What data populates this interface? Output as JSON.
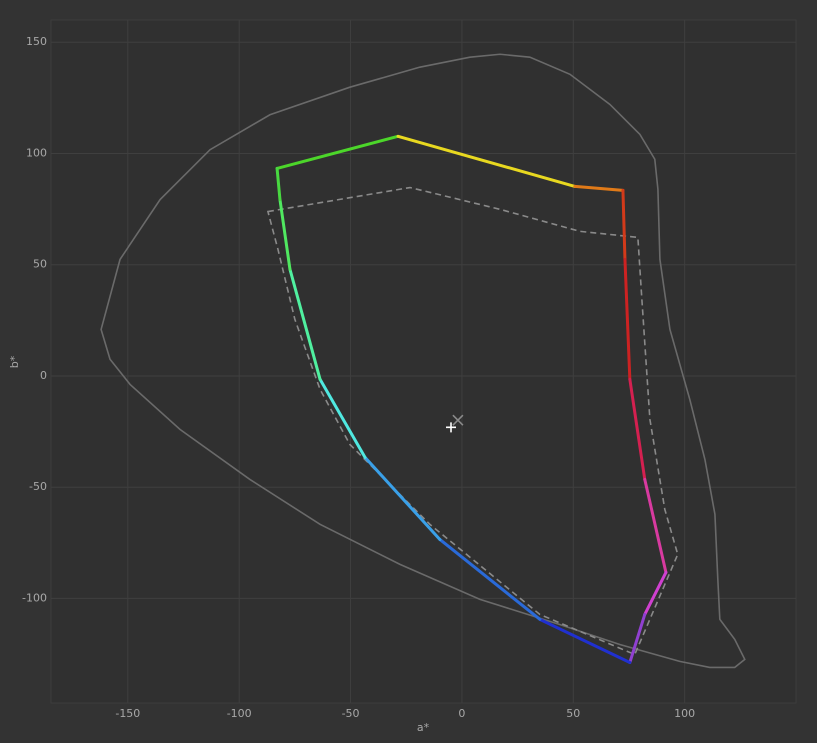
{
  "chart_data": {
    "type": "line",
    "x_label": "a*",
    "y_label": "b*",
    "xlim": [
      -184.5,
      150
    ],
    "ylim": [
      -147,
      160
    ],
    "xticks": [
      -150,
      -100,
      -50,
      0,
      50,
      100
    ],
    "yticks": [
      -100,
      -50,
      0,
      50,
      100,
      150
    ],
    "grid": true,
    "series": [
      {
        "color": "#6a6a6a",
        "dash": "solid",
        "closed": true,
        "x": [
          -162.0,
          -153.5,
          -135.5,
          -113.1,
          -86.2,
          -50.3,
          -18.9,
          3.6,
          17.1,
          30.5,
          48.5,
          66.4,
          79.9,
          86.6,
          88.0,
          88.9,
          93.4,
          102.3,
          109.1,
          113.6,
          114.9,
          115.8,
          122.5,
          127.0,
          122.5,
          111.3,
          97.8,
          70.9,
          43.9,
          8.1,
          -27.8,
          -63.7,
          -95.2,
          -126.6,
          -149.0,
          -158.0
        ],
        "y": [
          20.9,
          52.4,
          79.3,
          101.7,
          117.4,
          129.8,
          138.8,
          143.3,
          144.6,
          143.3,
          135.6,
          122.1,
          108.6,
          97.4,
          83.9,
          52.4,
          20.9,
          -10.5,
          -37.5,
          -62.2,
          -91.5,
          -109.4,
          -118.4,
          -127.4,
          -131.0,
          -131.0,
          -128.3,
          -120.7,
          -111.7,
          -100.4,
          -84.7,
          -66.7,
          -46.5,
          -24.0,
          -3.8,
          7.5
        ]
      },
      {
        "color": "#8a8a8a",
        "dash": "dashed",
        "closed": true,
        "x": [
          -87.1,
          -23.3,
          17.1,
          53.0,
          79.0,
          80.8,
          84.4,
          91.1,
          96.9,
          77.6,
          35.0,
          -14.4,
          -50.3,
          -63.7,
          -75.0,
          -82.6
        ],
        "y": [
          73.9,
          84.7,
          74.9,
          65.0,
          62.3,
          34.4,
          -19.5,
          -60.0,
          -80.2,
          -125.2,
          -107.2,
          -66.7,
          -30.8,
          -6.0,
          25.4,
          56.9
        ]
      },
      {
        "dash": "solid",
        "closed": true,
        "width": 3,
        "colors": [
          "#4cd62a",
          "#e8d820",
          "#e07a18",
          "#d23a1a",
          "#cc2222",
          "#d42050",
          "#d83aa0",
          "#d040d0",
          "#9040d0",
          "#2030d0",
          "#2a6ad8",
          "#3aa0e8",
          "#50e8e0",
          "#50f0a0",
          "#50e860",
          "#48d840"
        ],
        "x": [
          -83.0,
          -28.7,
          50.7,
          72.3,
          73.2,
          75.4,
          82.1,
          91.6,
          82.1,
          75.4,
          35.0,
          -9.9,
          -43.5,
          -63.7,
          -77.2,
          -81.7
        ],
        "y": [
          93.3,
          107.7,
          85.2,
          83.4,
          52.4,
          -1.5,
          -46.5,
          -88.3,
          -107.2,
          -128.8,
          -109.4,
          -73.5,
          -36.6,
          -1.5,
          47.9,
          79.3
        ]
      }
    ],
    "points": [
      {
        "x": -4.9,
        "y": -23.1,
        "marker": "plus",
        "color": "#ffffff"
      },
      {
        "x": -1.8,
        "y": -19.9,
        "marker": "x",
        "color": "#8a8a8a"
      }
    ]
  }
}
